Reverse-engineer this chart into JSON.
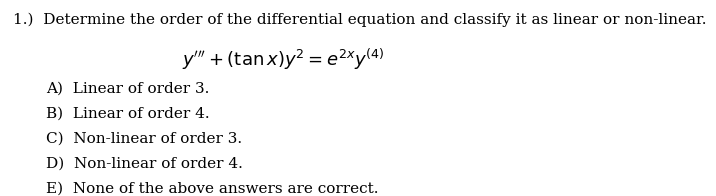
{
  "question_number": "1.)",
  "question_text": "Determine the order of the differential equation and classify it as linear or non-linear.",
  "equation_latex": "$y''' + (\\tan x)y^2 = e^{2x}y^{(4)}$",
  "options": [
    "A)  Linear of order 3.",
    "B)  Linear of order 4.",
    "C)  Non-linear of order 3.",
    "D)  Non-linear of order 4.",
    "E)  None of the above answers are correct."
  ],
  "bg_color": "#ffffff",
  "text_color": "#000000",
  "font_size_question": 11,
  "font_size_equation": 13,
  "font_size_options": 11
}
